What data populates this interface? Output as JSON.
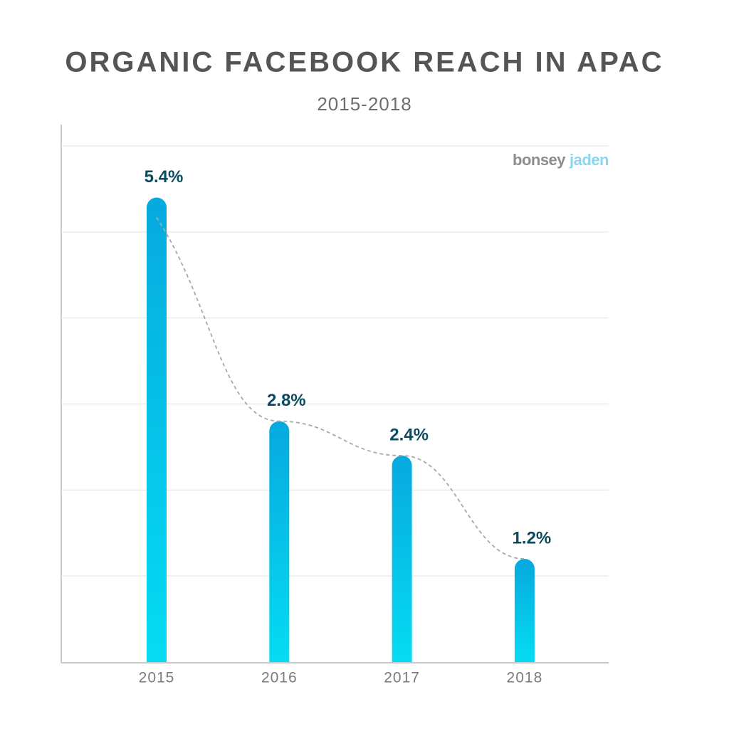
{
  "chart_data": {
    "type": "bar",
    "title": "ORGANIC FACEBOOK REACH IN APAC",
    "subtitle": "2015-2018",
    "categories": [
      "2015",
      "2016",
      "2017",
      "2018"
    ],
    "values": [
      5.4,
      2.8,
      2.4,
      1.2
    ],
    "value_labels": [
      "5.4%",
      "2.8%",
      "2.4%",
      "1.2%"
    ],
    "gradient": [
      "#06a9de",
      "#05dcf3"
    ],
    "ylim": [
      0,
      6
    ],
    "yticks": [
      1,
      2,
      3,
      4,
      5,
      6
    ],
    "grid": true,
    "trend_line": true,
    "watermark": [
      "bonsey",
      "jaden"
    ]
  }
}
